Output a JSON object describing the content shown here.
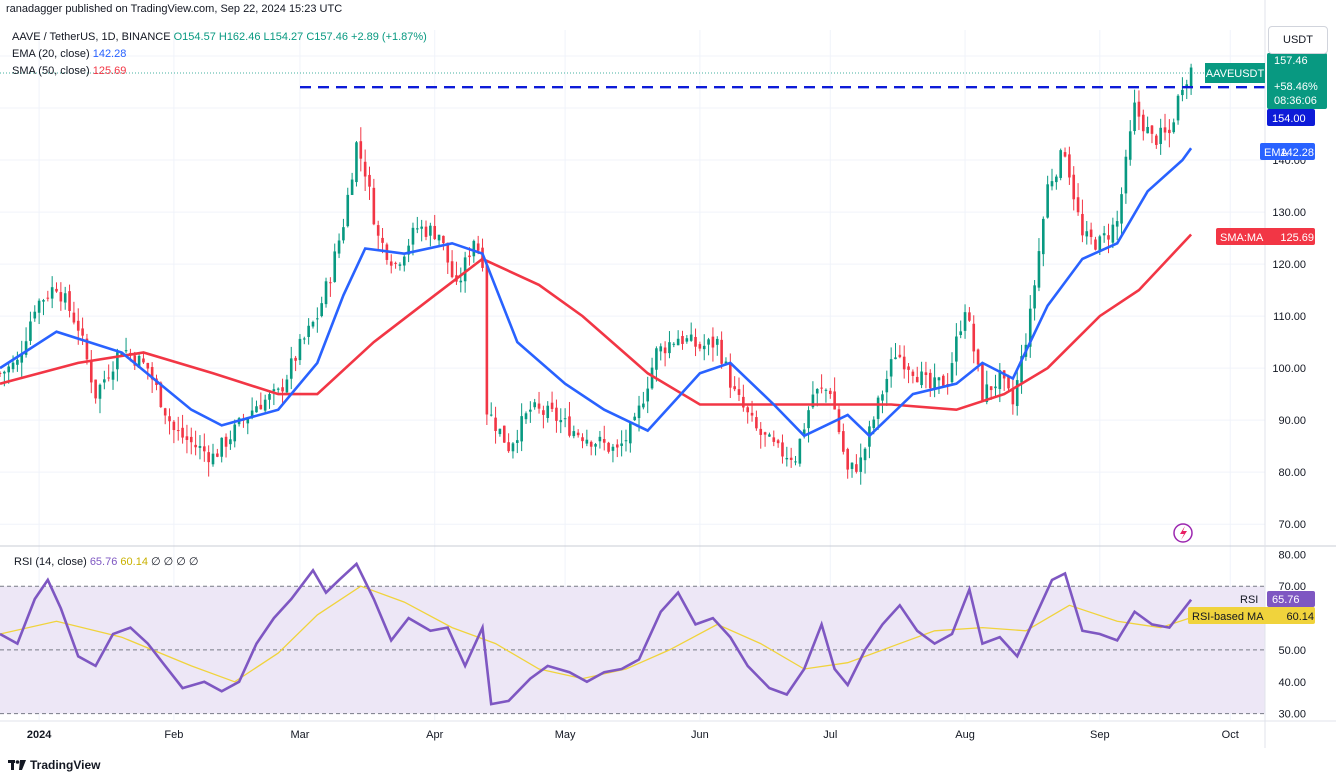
{
  "publisher": "ranadagger published on TradingView.com, Sep 22, 2024 15:23 UTC",
  "legend": {
    "symbol": "AAVE / TetherUS, 1D, BINANCE",
    "open": "O154.57",
    "high": "H162.46",
    "low": "L154.27",
    "close": "C157.46",
    "change": "+2.89 (+1.87%)",
    "ema_label": "EMA (20, close)",
    "ema_value": "142.28",
    "sma_label": "SMA (50, close)",
    "sma_value": "125.69"
  },
  "rsi_legend": {
    "label": "RSI (14, close)",
    "rsi_value": "65.76",
    "ma_value": "60.14",
    "extras": "∅ ∅ ∅ ∅"
  },
  "currency": "USDT",
  "footer": "TradingView",
  "price_tags": {
    "symbol_label": "AAVEUSDT",
    "last_price": "157.46",
    "pct_change": "+58.46%",
    "countdown": "08:36:06",
    "level": "154.00",
    "ema_tag": "EMA",
    "ema_value": "142.28",
    "sma_tag": "SMA:MA",
    "sma_value": "125.69",
    "rsi_tag": "RSI",
    "rsi_value": "65.76",
    "rsima_tag": "RSI-based MA",
    "rsima_value": "60.14"
  },
  "colors": {
    "up": "#089981",
    "down": "#f23645",
    "ema": "#2962ff",
    "sma": "#f23645",
    "rsi": "#7e57c2",
    "rsi_ma": "#f0d33c",
    "level_line": "#0d1bd8",
    "rsi_band": "#ede7f6"
  },
  "chart_data": [
    {
      "type": "candlestick",
      "title": "AAVE / TetherUS, 1D, BINANCE",
      "ylabel": "USDT",
      "ylim": [
        66,
        165
      ],
      "y_ticks": [
        "160.00",
        "150.00",
        "140.00",
        "130.00",
        "120.00",
        "110.00",
        "100.00",
        "90.00",
        "80.00",
        "70.00"
      ],
      "x_tick_labels": [
        "2024",
        "Feb",
        "Mar",
        "Apr",
        "May",
        "Jun",
        "Jul",
        "Aug",
        "Sep",
        "Oct"
      ],
      "x_range": [
        "2023-12-23",
        "2024-10-09"
      ],
      "horizontal_level": 154,
      "anchors": [
        [
          "2023-12-23",
          99
        ],
        [
          "2023-12-27",
          101
        ],
        [
          "2023-12-31",
          112
        ],
        [
          "2024-01-05",
          116
        ],
        [
          "2024-01-10",
          108
        ],
        [
          "2024-01-14",
          95
        ],
        [
          "2024-01-20",
          104
        ],
        [
          "2024-01-26",
          100
        ],
        [
          "2024-02-01",
          88
        ],
        [
          "2024-02-06",
          85
        ],
        [
          "2024-02-10",
          83
        ],
        [
          "2024-02-15",
          88
        ],
        [
          "2024-02-20",
          93
        ],
        [
          "2024-02-25",
          95
        ],
        [
          "2024-03-01",
          104
        ],
        [
          "2024-03-05",
          110
        ],
        [
          "2024-03-08",
          118
        ],
        [
          "2024-03-11",
          128
        ],
        [
          "2024-03-14",
          143
        ],
        [
          "2024-03-16",
          138
        ],
        [
          "2024-03-19",
          125
        ],
        [
          "2024-03-23",
          120
        ],
        [
          "2024-03-28",
          127
        ],
        [
          "2024-04-02",
          126
        ],
        [
          "2024-04-06",
          115
        ],
        [
          "2024-04-10",
          125
        ],
        [
          "2024-04-12",
          121
        ],
        [
          "2024-04-13",
          92
        ],
        [
          "2024-04-18",
          85
        ],
        [
          "2024-04-23",
          92
        ],
        [
          "2024-04-28",
          91
        ],
        [
          "2024-05-03",
          88
        ],
        [
          "2024-05-08",
          86
        ],
        [
          "2024-05-13",
          84
        ],
        [
          "2024-05-17",
          89
        ],
        [
          "2024-05-22",
          103
        ],
        [
          "2024-05-27",
          106
        ],
        [
          "2024-06-01",
          104
        ],
        [
          "2024-06-05",
          105
        ],
        [
          "2024-06-09",
          95
        ],
        [
          "2024-06-14",
          88
        ],
        [
          "2024-06-19",
          84
        ],
        [
          "2024-06-23",
          83
        ],
        [
          "2024-06-27",
          95
        ],
        [
          "2024-07-01",
          96
        ],
        [
          "2024-07-05",
          80
        ],
        [
          "2024-07-08",
          82
        ],
        [
          "2024-07-12",
          93
        ],
        [
          "2024-07-16",
          103
        ],
        [
          "2024-07-20",
          100
        ],
        [
          "2024-07-24",
          96
        ],
        [
          "2024-07-28",
          98
        ],
        [
          "2024-08-01",
          112
        ],
        [
          "2024-08-05",
          95
        ],
        [
          "2024-08-09",
          98
        ],
        [
          "2024-08-12",
          93
        ],
        [
          "2024-08-16",
          110
        ],
        [
          "2024-08-20",
          135
        ],
        [
          "2024-08-24",
          142
        ],
        [
          "2024-08-28",
          125
        ],
        [
          "2024-09-01",
          124
        ],
        [
          "2024-09-05",
          128
        ],
        [
          "2024-09-09",
          150
        ],
        [
          "2024-09-13",
          144
        ],
        [
          "2024-09-17",
          145
        ],
        [
          "2024-09-20",
          155
        ],
        [
          "2024-09-22",
          157.46
        ]
      ],
      "ema20": [
        [
          "2023-12-23",
          100
        ],
        [
          "2024-01-05",
          107
        ],
        [
          "2024-01-20",
          103
        ],
        [
          "2024-02-05",
          92
        ],
        [
          "2024-02-12",
          89
        ],
        [
          "2024-02-25",
          92
        ],
        [
          "2024-03-05",
          101
        ],
        [
          "2024-03-11",
          114
        ],
        [
          "2024-03-16",
          123
        ],
        [
          "2024-03-25",
          122
        ],
        [
          "2024-04-05",
          124
        ],
        [
          "2024-04-12",
          122
        ],
        [
          "2024-04-20",
          105
        ],
        [
          "2024-05-01",
          97
        ],
        [
          "2024-05-10",
          92
        ],
        [
          "2024-05-20",
          88
        ],
        [
          "2024-06-01",
          99
        ],
        [
          "2024-06-08",
          101
        ],
        [
          "2024-06-18",
          93
        ],
        [
          "2024-06-25",
          87
        ],
        [
          "2024-07-05",
          91
        ],
        [
          "2024-07-10",
          87
        ],
        [
          "2024-07-20",
          95
        ],
        [
          "2024-07-30",
          97
        ],
        [
          "2024-08-05",
          101
        ],
        [
          "2024-08-12",
          98
        ],
        [
          "2024-08-20",
          112
        ],
        [
          "2024-08-28",
          121
        ],
        [
          "2024-09-05",
          124
        ],
        [
          "2024-09-12",
          134
        ],
        [
          "2024-09-20",
          140
        ],
        [
          "2024-09-22",
          142.28
        ]
      ],
      "sma50": [
        [
          "2023-12-23",
          97
        ],
        [
          "2024-01-10",
          101
        ],
        [
          "2024-01-25",
          103
        ],
        [
          "2024-02-10",
          99
        ],
        [
          "2024-02-25",
          95
        ],
        [
          "2024-03-05",
          95
        ],
        [
          "2024-03-18",
          105
        ],
        [
          "2024-04-01",
          114
        ],
        [
          "2024-04-12",
          121
        ],
        [
          "2024-04-25",
          116
        ],
        [
          "2024-05-05",
          110
        ],
        [
          "2024-05-20",
          99
        ],
        [
          "2024-06-01",
          93
        ],
        [
          "2024-06-15",
          93
        ],
        [
          "2024-07-01",
          93
        ],
        [
          "2024-07-15",
          93
        ],
        [
          "2024-07-30",
          92
        ],
        [
          "2024-08-10",
          95
        ],
        [
          "2024-08-20",
          100
        ],
        [
          "2024-09-01",
          110
        ],
        [
          "2024-09-10",
          115
        ],
        [
          "2024-09-22",
          125.69
        ]
      ]
    },
    {
      "type": "line",
      "title": "RSI (14, close)",
      "ylim": [
        28,
        82
      ],
      "y_ticks": [
        "80.00",
        "70.00",
        "60.00",
        "50.00",
        "40.00",
        "30.00"
      ],
      "band": [
        30,
        70
      ],
      "series": [
        {
          "name": "RSI",
          "points": [
            [
              "2023-12-23",
              55
            ],
            [
              "2023-12-27",
              52
            ],
            [
              "2023-12-31",
              66
            ],
            [
              "2024-01-03",
              72
            ],
            [
              "2024-01-06",
              63
            ],
            [
              "2024-01-10",
              48
            ],
            [
              "2024-01-14",
              45
            ],
            [
              "2024-01-18",
              55
            ],
            [
              "2024-01-22",
              57
            ],
            [
              "2024-01-26",
              52
            ],
            [
              "2024-01-30",
              45
            ],
            [
              "2024-02-03",
              38
            ],
            [
              "2024-02-08",
              40
            ],
            [
              "2024-02-12",
              37
            ],
            [
              "2024-02-16",
              40
            ],
            [
              "2024-02-20",
              52
            ],
            [
              "2024-02-24",
              60
            ],
            [
              "2024-02-28",
              66
            ],
            [
              "2024-03-04",
              75
            ],
            [
              "2024-03-07",
              68
            ],
            [
              "2024-03-10",
              72
            ],
            [
              "2024-03-14",
              77
            ],
            [
              "2024-03-18",
              66
            ],
            [
              "2024-03-22",
              53
            ],
            [
              "2024-03-26",
              60
            ],
            [
              "2024-03-31",
              56
            ],
            [
              "2024-04-04",
              57
            ],
            [
              "2024-04-08",
              45
            ],
            [
              "2024-04-12",
              57
            ],
            [
              "2024-04-14",
              33
            ],
            [
              "2024-04-18",
              34
            ],
            [
              "2024-04-23",
              41
            ],
            [
              "2024-04-27",
              45
            ],
            [
              "2024-05-02",
              43
            ],
            [
              "2024-05-06",
              40
            ],
            [
              "2024-05-10",
              43
            ],
            [
              "2024-05-14",
              44
            ],
            [
              "2024-05-18",
              47
            ],
            [
              "2024-05-23",
              62
            ],
            [
              "2024-05-27",
              68
            ],
            [
              "2024-05-31",
              58
            ],
            [
              "2024-06-04",
              60
            ],
            [
              "2024-06-08",
              54
            ],
            [
              "2024-06-12",
              45
            ],
            [
              "2024-06-17",
              38
            ],
            [
              "2024-06-21",
              36
            ],
            [
              "2024-06-25",
              44
            ],
            [
              "2024-06-29",
              58
            ],
            [
              "2024-07-02",
              44
            ],
            [
              "2024-07-05",
              39
            ],
            [
              "2024-07-09",
              50
            ],
            [
              "2024-07-13",
              58
            ],
            [
              "2024-07-17",
              64
            ],
            [
              "2024-07-21",
              56
            ],
            [
              "2024-07-25",
              52
            ],
            [
              "2024-07-29",
              55
            ],
            [
              "2024-08-02",
              69
            ],
            [
              "2024-08-05",
              52
            ],
            [
              "2024-08-09",
              54
            ],
            [
              "2024-08-13",
              48
            ],
            [
              "2024-08-17",
              60
            ],
            [
              "2024-08-21",
              72
            ],
            [
              "2024-08-24",
              74
            ],
            [
              "2024-08-28",
              56
            ],
            [
              "2024-09-01",
              55
            ],
            [
              "2024-09-05",
              53
            ],
            [
              "2024-09-09",
              62
            ],
            [
              "2024-09-13",
              58
            ],
            [
              "2024-09-17",
              57
            ],
            [
              "2024-09-22",
              65.76
            ]
          ]
        },
        {
          "name": "RSI-based MA",
          "points": [
            [
              "2023-12-23",
              55
            ],
            [
              "2024-01-05",
              59
            ],
            [
              "2024-01-20",
              54
            ],
            [
              "2024-02-05",
              45
            ],
            [
              "2024-02-15",
              40
            ],
            [
              "2024-02-25",
              49
            ],
            [
              "2024-03-05",
              61
            ],
            [
              "2024-03-15",
              70
            ],
            [
              "2024-03-25",
              65
            ],
            [
              "2024-04-05",
              57
            ],
            [
              "2024-04-15",
              52
            ],
            [
              "2024-04-25",
              44
            ],
            [
              "2024-05-05",
              41
            ],
            [
              "2024-05-15",
              44
            ],
            [
              "2024-05-25",
              50
            ],
            [
              "2024-06-05",
              58
            ],
            [
              "2024-06-15",
              52
            ],
            [
              "2024-06-25",
              44
            ],
            [
              "2024-07-05",
              46
            ],
            [
              "2024-07-15",
              51
            ],
            [
              "2024-07-25",
              56
            ],
            [
              "2024-08-05",
              57
            ],
            [
              "2024-08-15",
              56
            ],
            [
              "2024-08-25",
              64
            ],
            [
              "2024-09-05",
              59
            ],
            [
              "2024-09-15",
              57
            ],
            [
              "2024-09-22",
              60.14
            ]
          ]
        }
      ]
    }
  ]
}
